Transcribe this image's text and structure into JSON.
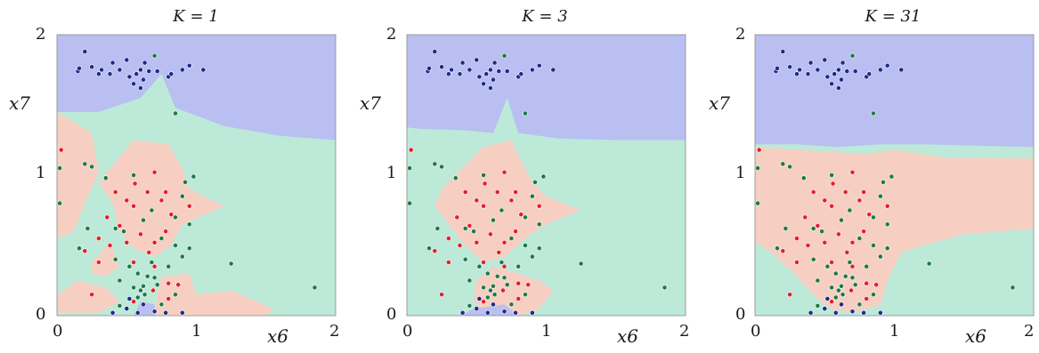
{
  "colors": {
    "class_blue": "#1f2a8c",
    "class_red": "#e3202a",
    "class_green": "#1d7a45",
    "region_blue": "#b9bff0",
    "region_red": "#f7cfc2",
    "region_green": "#bde9d8"
  },
  "chart_data": [
    {
      "type": "scatter",
      "title": "K = 1",
      "xlabel": "x6",
      "ylabel": "x7",
      "xlim": [
        0,
        2
      ],
      "ylim": [
        0,
        2
      ],
      "xticks": [
        "0",
        "1",
        "2"
      ],
      "yticks": [
        "0",
        "1",
        "2"
      ],
      "grid": false
    },
    {
      "type": "scatter",
      "title": "K = 3",
      "xlabel": "x6",
      "ylabel": "x7",
      "xlim": [
        0,
        2
      ],
      "ylim": [
        0,
        2
      ],
      "xticks": [
        "0",
        "1",
        "2"
      ],
      "yticks": [
        "0",
        "1",
        "2"
      ],
      "grid": false
    },
    {
      "type": "scatter",
      "title": "K = 31",
      "xlabel": "x6",
      "ylabel": "x7",
      "xlim": [
        0,
        2
      ],
      "ylim": [
        0,
        2
      ],
      "xticks": [
        "0",
        "1",
        "2"
      ],
      "yticks": [
        "0",
        "1",
        "2"
      ],
      "grid": false
    }
  ],
  "points": {
    "blue": [
      [
        0.15,
        1.74
      ],
      [
        0.16,
        1.76
      ],
      [
        0.2,
        1.88
      ],
      [
        0.25,
        1.77
      ],
      [
        0.3,
        1.72
      ],
      [
        0.32,
        1.75
      ],
      [
        0.38,
        1.72
      ],
      [
        0.4,
        1.8
      ],
      [
        0.45,
        1.75
      ],
      [
        0.5,
        1.82
      ],
      [
        0.52,
        1.7
      ],
      [
        0.55,
        1.65
      ],
      [
        0.57,
        1.72
      ],
      [
        0.6,
        1.75
      ],
      [
        0.62,
        1.68
      ],
      [
        0.63,
        1.8
      ],
      [
        0.6,
        1.62
      ],
      [
        0.66,
        1.74
      ],
      [
        0.72,
        1.74
      ],
      [
        0.8,
        1.7
      ],
      [
        0.82,
        1.72
      ],
      [
        0.9,
        1.75
      ],
      [
        0.95,
        1.78
      ],
      [
        1.05,
        1.75
      ],
      [
        0.4,
        0.02
      ],
      [
        0.5,
        0.05
      ],
      [
        0.58,
        0.02
      ],
      [
        0.62,
        0.08
      ],
      [
        0.7,
        0.03
      ],
      [
        0.78,
        0.02
      ],
      [
        0.9,
        0.02
      ],
      [
        0.52,
        0.12
      ]
    ],
    "red": [
      [
        0.03,
        1.18
      ],
      [
        0.42,
        0.88
      ],
      [
        0.5,
        0.82
      ],
      [
        0.55,
        0.78
      ],
      [
        0.56,
        0.94
      ],
      [
        0.65,
        0.88
      ],
      [
        0.7,
        1.02
      ],
      [
        0.75,
        0.82
      ],
      [
        0.78,
        0.88
      ],
      [
        0.82,
        0.72
      ],
      [
        0.95,
        0.78
      ],
      [
        0.36,
        0.7
      ],
      [
        0.45,
        0.64
      ],
      [
        0.5,
        0.52
      ],
      [
        0.6,
        0.58
      ],
      [
        0.66,
        0.45
      ],
      [
        0.7,
        0.52
      ],
      [
        0.78,
        0.6
      ],
      [
        0.55,
        0.38
      ],
      [
        0.7,
        0.35
      ],
      [
        0.3,
        0.55
      ],
      [
        0.2,
        0.46
      ],
      [
        0.38,
        0.5
      ],
      [
        0.8,
        0.23
      ],
      [
        0.87,
        0.22
      ],
      [
        0.55,
        0.1
      ],
      [
        0.69,
        0.18
      ],
      [
        0.25,
        0.15
      ],
      [
        0.8,
        0.12
      ],
      [
        0.3,
        0.38
      ]
    ],
    "green": [
      [
        0.02,
        1.05
      ],
      [
        0.02,
        0.8
      ],
      [
        0.2,
        1.08
      ],
      [
        0.25,
        1.06
      ],
      [
        0.35,
        0.98
      ],
      [
        0.55,
        1.0
      ],
      [
        0.7,
        1.85
      ],
      [
        0.85,
        1.44
      ],
      [
        0.92,
        0.95
      ],
      [
        0.98,
        0.99
      ],
      [
        0.9,
        0.85
      ],
      [
        0.68,
        0.75
      ],
      [
        0.85,
        0.7
      ],
      [
        0.95,
        0.65
      ],
      [
        0.62,
        0.68
      ],
      [
        0.75,
        0.55
      ],
      [
        0.22,
        0.62
      ],
      [
        0.16,
        0.48
      ],
      [
        0.42,
        0.62
      ],
      [
        0.48,
        0.6
      ],
      [
        0.85,
        0.5
      ],
      [
        0.95,
        0.48
      ],
      [
        0.9,
        0.42
      ],
      [
        0.52,
        0.35
      ],
      [
        0.58,
        0.3
      ],
      [
        0.65,
        0.28
      ],
      [
        0.7,
        0.27
      ],
      [
        0.68,
        0.38
      ],
      [
        0.8,
        0.35
      ],
      [
        0.45,
        0.25
      ],
      [
        0.55,
        0.2
      ],
      [
        0.6,
        0.18
      ],
      [
        0.63,
        0.15
      ],
      [
        0.75,
        0.08
      ],
      [
        0.85,
        0.15
      ],
      [
        0.45,
        0.07
      ],
      [
        0.58,
        0.13
      ],
      [
        1.25,
        0.37
      ],
      [
        1.85,
        0.2
      ],
      [
        0.62,
        0.21
      ],
      [
        0.42,
        0.4
      ],
      [
        0.72,
        0.22
      ]
    ]
  }
}
